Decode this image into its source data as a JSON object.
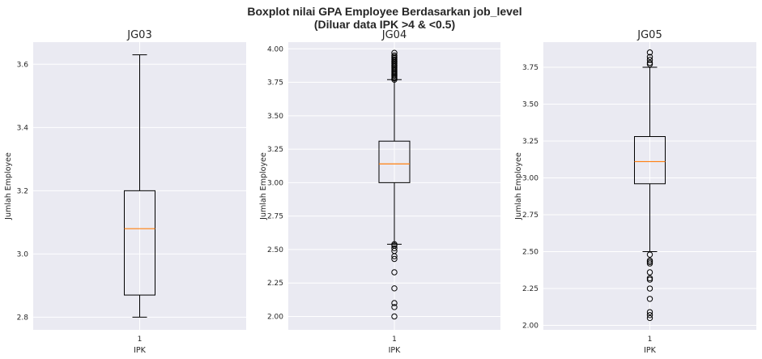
{
  "figure": {
    "title_line1": "Boxplot nilai GPA Employee Berdasarkan job_level",
    "title_line2": "(Diluar data IPK >4 & <0.5)",
    "background": "#ffffff",
    "axes_bg": "#eaeaf2",
    "grid_color": "#ffffff",
    "box_color": "#000000",
    "median_color": "#ff7f0e"
  },
  "chart_data": [
    {
      "type": "box",
      "title": "JG03",
      "xlabel": "IPK",
      "ylabel": "Jumlah Employee",
      "categories": [
        "1"
      ],
      "ylim": [
        2.76,
        3.67
      ],
      "yticks": [
        2.8,
        3.0,
        3.2,
        3.4,
        3.6
      ],
      "ytick_labels": [
        "2.8",
        "3.0",
        "3.2",
        "3.4",
        "3.6"
      ],
      "box": {
        "whisker_low": 2.8,
        "q1": 2.87,
        "median": 3.08,
        "q3": 3.2,
        "whisker_high": 3.63
      },
      "outliers": [],
      "grid": true
    },
    {
      "type": "box",
      "title": "JG04",
      "xlabel": "IPK",
      "ylabel": "Jumlah Employee",
      "categories": [
        "1"
      ],
      "ylim": [
        1.9,
        4.05
      ],
      "yticks": [
        2.0,
        2.25,
        2.5,
        2.75,
        3.0,
        3.25,
        3.5,
        3.75,
        4.0
      ],
      "ytick_labels": [
        "2.00",
        "2.25",
        "2.50",
        "2.75",
        "3.00",
        "3.25",
        "3.50",
        "3.75",
        "4.00"
      ],
      "box": {
        "whisker_low": 2.54,
        "q1": 3.0,
        "median": 3.14,
        "q3": 3.31,
        "whisker_high": 3.77
      },
      "outliers": [
        2.0,
        2.07,
        2.1,
        2.21,
        2.33,
        2.43,
        2.45,
        2.49,
        2.51,
        2.53,
        2.54,
        3.77,
        3.78,
        3.79,
        3.8,
        3.81,
        3.82,
        3.83,
        3.84,
        3.85,
        3.86,
        3.87,
        3.88,
        3.89,
        3.9,
        3.91,
        3.92,
        3.93,
        3.94,
        3.95,
        3.97
      ],
      "grid": true
    },
    {
      "type": "box",
      "title": "JG05",
      "xlabel": "IPK",
      "ylabel": "Jumlah Employee",
      "categories": [
        "1"
      ],
      "ylim": [
        1.97,
        3.92
      ],
      "yticks": [
        2.0,
        2.25,
        2.5,
        2.75,
        3.0,
        3.25,
        3.5,
        3.75
      ],
      "ytick_labels": [
        "2.00",
        "2.25",
        "2.50",
        "2.75",
        "3.00",
        "3.25",
        "3.50",
        "3.75"
      ],
      "box": {
        "whisker_low": 2.5,
        "q1": 2.96,
        "median": 3.11,
        "q3": 3.28,
        "whisker_high": 3.75
      },
      "outliers": [
        2.05,
        2.07,
        2.09,
        2.18,
        2.25,
        2.31,
        2.32,
        2.36,
        2.42,
        2.43,
        2.44,
        2.48,
        3.77,
        3.78,
        3.8,
        3.82,
        3.85
      ],
      "grid": true
    }
  ]
}
